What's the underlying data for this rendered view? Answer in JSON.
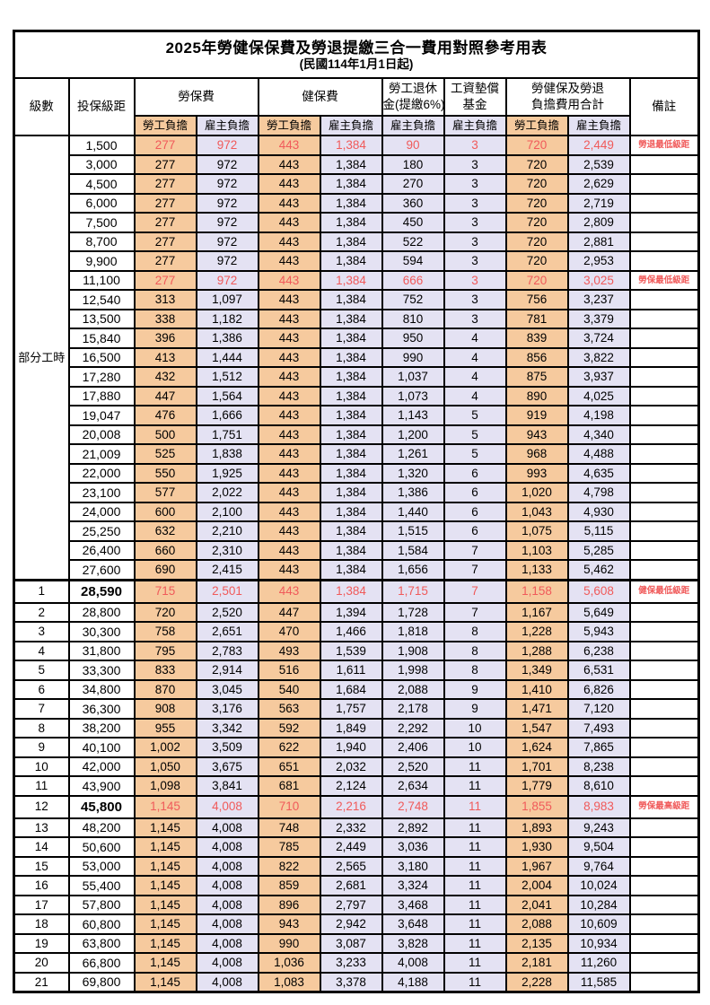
{
  "title": "2025年勞健保保費及勞退提繳三合一費用對照參考用表",
  "subtitle": "(民國114年1月1日起)",
  "header": {
    "level": "級數",
    "bracket": "投保級距",
    "labor": "勞保費",
    "health": "健保費",
    "pension_line1": "勞工退休",
    "pension_line2": "金(提繳6%)",
    "wage_fund_line1": "工資墊償",
    "wage_fund_line2": "基金",
    "total_line1": "勞健保及勞退",
    "total_line2": "負擔費用合計",
    "remark": "備註",
    "employee_label": "勞工負擔",
    "employer_label": "雇主負擔"
  },
  "part_time_label": "部分工時",
  "part_time_rowspan": 23,
  "colors": {
    "employee_bg": "#F6CA9E",
    "employer_bg": "#E4E2F3",
    "highlight_red": "#F05A5A",
    "border": "#000000"
  },
  "rows": [
    {
      "level": "",
      "bracket": "1,500",
      "cells": [
        "277",
        "972",
        "443",
        "1,384",
        "90",
        "3",
        "720",
        "2,449"
      ],
      "remark": "勞退最低級距",
      "red": true,
      "thick_top": false,
      "tall": false
    },
    {
      "level": "",
      "bracket": "3,000",
      "cells": [
        "277",
        "972",
        "443",
        "1,384",
        "180",
        "3",
        "720",
        "2,539"
      ],
      "remark": "",
      "red": false,
      "thick_top": false,
      "tall": false
    },
    {
      "level": "",
      "bracket": "4,500",
      "cells": [
        "277",
        "972",
        "443",
        "1,384",
        "270",
        "3",
        "720",
        "2,629"
      ],
      "remark": "",
      "red": false,
      "thick_top": false,
      "tall": false
    },
    {
      "level": "",
      "bracket": "6,000",
      "cells": [
        "277",
        "972",
        "443",
        "1,384",
        "360",
        "3",
        "720",
        "2,719"
      ],
      "remark": "",
      "red": false,
      "thick_top": false,
      "tall": false
    },
    {
      "level": "",
      "bracket": "7,500",
      "cells": [
        "277",
        "972",
        "443",
        "1,384",
        "450",
        "3",
        "720",
        "2,809"
      ],
      "remark": "",
      "red": false,
      "thick_top": false,
      "tall": false
    },
    {
      "level": "",
      "bracket": "8,700",
      "cells": [
        "277",
        "972",
        "443",
        "1,384",
        "522",
        "3",
        "720",
        "2,881"
      ],
      "remark": "",
      "red": false,
      "thick_top": false,
      "tall": false
    },
    {
      "level": "",
      "bracket": "9,900",
      "cells": [
        "277",
        "972",
        "443",
        "1,384",
        "594",
        "3",
        "720",
        "2,953"
      ],
      "remark": "",
      "red": false,
      "thick_top": false,
      "tall": false
    },
    {
      "level": "",
      "bracket": "11,100",
      "cells": [
        "277",
        "972",
        "443",
        "1,384",
        "666",
        "3",
        "720",
        "3,025"
      ],
      "remark": "勞保最低級距",
      "red": true,
      "thick_top": false,
      "tall": false
    },
    {
      "level": "",
      "bracket": "12,540",
      "cells": [
        "313",
        "1,097",
        "443",
        "1,384",
        "752",
        "3",
        "756",
        "3,237"
      ],
      "remark": "",
      "red": false,
      "thick_top": false,
      "tall": false
    },
    {
      "level": "",
      "bracket": "13,500",
      "cells": [
        "338",
        "1,182",
        "443",
        "1,384",
        "810",
        "3",
        "781",
        "3,379"
      ],
      "remark": "",
      "red": false,
      "thick_top": false,
      "tall": false
    },
    {
      "level": "",
      "bracket": "15,840",
      "cells": [
        "396",
        "1,386",
        "443",
        "1,384",
        "950",
        "4",
        "839",
        "3,724"
      ],
      "remark": "",
      "red": false,
      "thick_top": false,
      "tall": false
    },
    {
      "level": "",
      "bracket": "16,500",
      "cells": [
        "413",
        "1,444",
        "443",
        "1,384",
        "990",
        "4",
        "856",
        "3,822"
      ],
      "remark": "",
      "red": false,
      "thick_top": false,
      "tall": false
    },
    {
      "level": "",
      "bracket": "17,280",
      "cells": [
        "432",
        "1,512",
        "443",
        "1,384",
        "1,037",
        "4",
        "875",
        "3,937"
      ],
      "remark": "",
      "red": false,
      "thick_top": false,
      "tall": false
    },
    {
      "level": "",
      "bracket": "17,880",
      "cells": [
        "447",
        "1,564",
        "443",
        "1,384",
        "1,073",
        "4",
        "890",
        "4,025"
      ],
      "remark": "",
      "red": false,
      "thick_top": false,
      "tall": false
    },
    {
      "level": "",
      "bracket": "19,047",
      "cells": [
        "476",
        "1,666",
        "443",
        "1,384",
        "1,143",
        "5",
        "919",
        "4,198"
      ],
      "remark": "",
      "red": false,
      "thick_top": false,
      "tall": false
    },
    {
      "level": "",
      "bracket": "20,008",
      "cells": [
        "500",
        "1,751",
        "443",
        "1,384",
        "1,200",
        "5",
        "943",
        "4,340"
      ],
      "remark": "",
      "red": false,
      "thick_top": false,
      "tall": false
    },
    {
      "level": "",
      "bracket": "21,009",
      "cells": [
        "525",
        "1,838",
        "443",
        "1,384",
        "1,261",
        "5",
        "968",
        "4,488"
      ],
      "remark": "",
      "red": false,
      "thick_top": false,
      "tall": false
    },
    {
      "level": "",
      "bracket": "22,000",
      "cells": [
        "550",
        "1,925",
        "443",
        "1,384",
        "1,320",
        "6",
        "993",
        "4,635"
      ],
      "remark": "",
      "red": false,
      "thick_top": false,
      "tall": false
    },
    {
      "level": "",
      "bracket": "23,100",
      "cells": [
        "577",
        "2,022",
        "443",
        "1,384",
        "1,386",
        "6",
        "1,020",
        "4,798"
      ],
      "remark": "",
      "red": false,
      "thick_top": false,
      "tall": false
    },
    {
      "level": "",
      "bracket": "24,000",
      "cells": [
        "600",
        "2,100",
        "443",
        "1,384",
        "1,440",
        "6",
        "1,043",
        "4,930"
      ],
      "remark": "",
      "red": false,
      "thick_top": false,
      "tall": false
    },
    {
      "level": "",
      "bracket": "25,250",
      "cells": [
        "632",
        "2,210",
        "443",
        "1,384",
        "1,515",
        "6",
        "1,075",
        "5,115"
      ],
      "remark": "",
      "red": false,
      "thick_top": false,
      "tall": false
    },
    {
      "level": "",
      "bracket": "26,400",
      "cells": [
        "660",
        "2,310",
        "443",
        "1,384",
        "1,584",
        "7",
        "1,103",
        "5,285"
      ],
      "remark": "",
      "red": false,
      "thick_top": false,
      "tall": false
    },
    {
      "level": "",
      "bracket": "27,600",
      "cells": [
        "690",
        "2,415",
        "443",
        "1,384",
        "1,656",
        "7",
        "1,133",
        "5,462"
      ],
      "remark": "",
      "red": false,
      "thick_top": false,
      "tall": false
    },
    {
      "level": "1",
      "bracket": "28,590",
      "cells": [
        "715",
        "2,501",
        "443",
        "1,384",
        "1,715",
        "7",
        "1,158",
        "5,608"
      ],
      "remark": "健保最低級距",
      "red": true,
      "thick_top": true,
      "tall": true
    },
    {
      "level": "2",
      "bracket": "28,800",
      "cells": [
        "720",
        "2,520",
        "447",
        "1,394",
        "1,728",
        "7",
        "1,167",
        "5,649"
      ],
      "remark": "",
      "red": false,
      "thick_top": false,
      "tall": false
    },
    {
      "level": "3",
      "bracket": "30,300",
      "cells": [
        "758",
        "2,651",
        "470",
        "1,466",
        "1,818",
        "8",
        "1,228",
        "5,943"
      ],
      "remark": "",
      "red": false,
      "thick_top": false,
      "tall": false
    },
    {
      "level": "4",
      "bracket": "31,800",
      "cells": [
        "795",
        "2,783",
        "493",
        "1,539",
        "1,908",
        "8",
        "1,288",
        "6,238"
      ],
      "remark": "",
      "red": false,
      "thick_top": false,
      "tall": false
    },
    {
      "level": "5",
      "bracket": "33,300",
      "cells": [
        "833",
        "2,914",
        "516",
        "1,611",
        "1,998",
        "8",
        "1,349",
        "6,531"
      ],
      "remark": "",
      "red": false,
      "thick_top": false,
      "tall": false
    },
    {
      "level": "6",
      "bracket": "34,800",
      "cells": [
        "870",
        "3,045",
        "540",
        "1,684",
        "2,088",
        "9",
        "1,410",
        "6,826"
      ],
      "remark": "",
      "red": false,
      "thick_top": false,
      "tall": false
    },
    {
      "level": "7",
      "bracket": "36,300",
      "cells": [
        "908",
        "3,176",
        "563",
        "1,757",
        "2,178",
        "9",
        "1,471",
        "7,120"
      ],
      "remark": "",
      "red": false,
      "thick_top": false,
      "tall": false
    },
    {
      "level": "8",
      "bracket": "38,200",
      "cells": [
        "955",
        "3,342",
        "592",
        "1,849",
        "2,292",
        "10",
        "1,547",
        "7,493"
      ],
      "remark": "",
      "red": false,
      "thick_top": false,
      "tall": false
    },
    {
      "level": "9",
      "bracket": "40,100",
      "cells": [
        "1,002",
        "3,509",
        "622",
        "1,940",
        "2,406",
        "10",
        "1,624",
        "7,865"
      ],
      "remark": "",
      "red": false,
      "thick_top": false,
      "tall": false
    },
    {
      "level": "10",
      "bracket": "42,000",
      "cells": [
        "1,050",
        "3,675",
        "651",
        "2,032",
        "2,520",
        "11",
        "1,701",
        "8,238"
      ],
      "remark": "",
      "red": false,
      "thick_top": false,
      "tall": false
    },
    {
      "level": "11",
      "bracket": "43,900",
      "cells": [
        "1,098",
        "3,841",
        "681",
        "2,124",
        "2,634",
        "11",
        "1,779",
        "8,610"
      ],
      "remark": "",
      "red": false,
      "thick_top": false,
      "tall": false
    },
    {
      "level": "12",
      "bracket": "45,800",
      "cells": [
        "1,145",
        "4,008",
        "710",
        "2,216",
        "2,748",
        "11",
        "1,855",
        "8,983"
      ],
      "remark": "勞保最高級距",
      "red": true,
      "thick_top": false,
      "tall": true
    },
    {
      "level": "13",
      "bracket": "48,200",
      "cells": [
        "1,145",
        "4,008",
        "748",
        "2,332",
        "2,892",
        "11",
        "1,893",
        "9,243"
      ],
      "remark": "",
      "red": false,
      "thick_top": false,
      "tall": false
    },
    {
      "level": "14",
      "bracket": "50,600",
      "cells": [
        "1,145",
        "4,008",
        "785",
        "2,449",
        "3,036",
        "11",
        "1,930",
        "9,504"
      ],
      "remark": "",
      "red": false,
      "thick_top": false,
      "tall": false
    },
    {
      "level": "15",
      "bracket": "53,000",
      "cells": [
        "1,145",
        "4,008",
        "822",
        "2,565",
        "3,180",
        "11",
        "1,967",
        "9,764"
      ],
      "remark": "",
      "red": false,
      "thick_top": false,
      "tall": false
    },
    {
      "level": "16",
      "bracket": "55,400",
      "cells": [
        "1,145",
        "4,008",
        "859",
        "2,681",
        "3,324",
        "11",
        "2,004",
        "10,024"
      ],
      "remark": "",
      "red": false,
      "thick_top": false,
      "tall": false
    },
    {
      "level": "17",
      "bracket": "57,800",
      "cells": [
        "1,145",
        "4,008",
        "896",
        "2,797",
        "3,468",
        "11",
        "2,041",
        "10,284"
      ],
      "remark": "",
      "red": false,
      "thick_top": false,
      "tall": false
    },
    {
      "level": "18",
      "bracket": "60,800",
      "cells": [
        "1,145",
        "4,008",
        "943",
        "2,942",
        "3,648",
        "11",
        "2,088",
        "10,609"
      ],
      "remark": "",
      "red": false,
      "thick_top": false,
      "tall": false
    },
    {
      "level": "19",
      "bracket": "63,800",
      "cells": [
        "1,145",
        "4,008",
        "990",
        "3,087",
        "3,828",
        "11",
        "2,135",
        "10,934"
      ],
      "remark": "",
      "red": false,
      "thick_top": false,
      "tall": false
    },
    {
      "level": "20",
      "bracket": "66,800",
      "cells": [
        "1,145",
        "4,008",
        "1,036",
        "3,233",
        "4,008",
        "11",
        "2,181",
        "11,260"
      ],
      "remark": "",
      "red": false,
      "thick_top": false,
      "tall": false
    },
    {
      "level": "21",
      "bracket": "69,800",
      "cells": [
        "1,145",
        "4,008",
        "1,083",
        "3,378",
        "4,188",
        "11",
        "2,228",
        "11,585"
      ],
      "remark": "",
      "red": false,
      "thick_top": false,
      "tall": false
    }
  ]
}
